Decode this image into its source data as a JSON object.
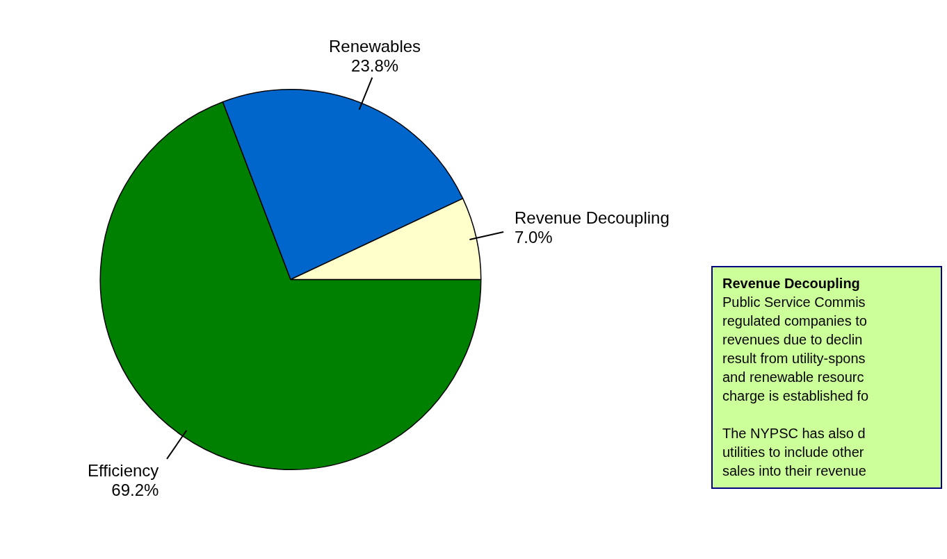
{
  "chart_data": {
    "type": "pie",
    "categories": [
      "Efficiency",
      "Renewables",
      "Revenue Decoupling"
    ],
    "values": [
      69.2,
      23.8,
      7.0
    ],
    "value_labels": [
      "69.2%",
      "23.8%",
      "7.0%"
    ],
    "colors": [
      "#008000",
      "#0066cc",
      "#ffffcc"
    ],
    "legend": false,
    "annotations": [
      "Revenue Decoupling",
      "Public Service Commis\nregulated companies to\nrevenues due to declin\nresult from utility-spons\nand renewable resourc\ncharge is established fo",
      "The NYPSC has also d\nutilities to include other\nsales into their revenue"
    ]
  }
}
